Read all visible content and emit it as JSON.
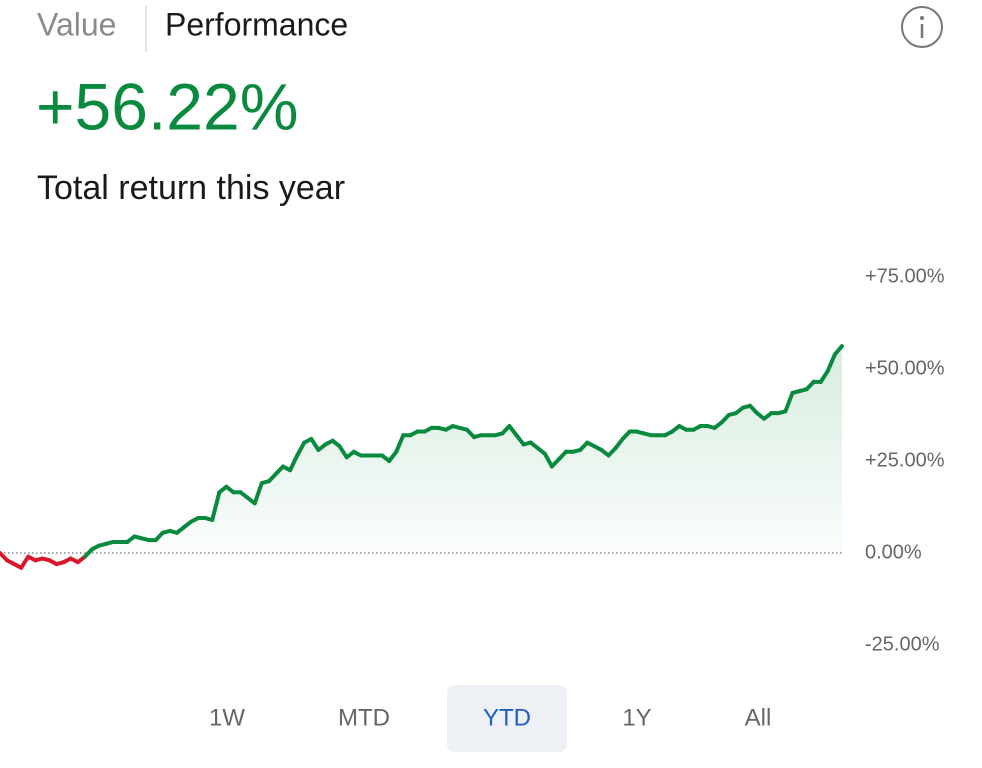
{
  "tabs": [
    "Value",
    "Performance"
  ],
  "active_tab": "Performance",
  "headline": "+56.22%",
  "subtitle": "Total return this year",
  "chart_data": {
    "type": "line",
    "values": [
      0,
      -2,
      -3,
      -4,
      -1,
      -2,
      -1.5,
      -2,
      -3,
      -2.5,
      -1.5,
      -2.5,
      -1,
      1,
      2,
      2.5,
      3,
      3,
      3,
      4.5,
      4,
      3.5,
      3.5,
      5.5,
      6,
      5.5,
      7,
      8.5,
      9.5,
      9.5,
      9,
      16.5,
      18,
      16.5,
      16.5,
      15,
      13.5,
      19,
      19.5,
      21.5,
      23.5,
      22.5,
      26.5,
      30,
      31,
      28,
      29.5,
      30.5,
      29,
      26,
      27.5,
      26.5,
      26.5,
      26.5,
      26.5,
      25,
      27.5,
      32,
      32,
      33,
      33,
      34,
      34,
      33.5,
      34.5,
      34,
      33.5,
      31.5,
      32,
      32,
      32,
      32.5,
      34.5,
      32,
      29.5,
      30,
      28.5,
      27,
      23.5,
      25.5,
      27.5,
      27.5,
      28,
      30,
      29,
      28,
      26.5,
      28.5,
      31,
      33,
      33,
      32.5,
      32,
      32,
      32,
      33,
      34.5,
      33.5,
      33.5,
      34.5,
      34.5,
      34,
      35.5,
      37.5,
      38,
      39.5,
      40,
      38,
      36.5,
      38,
      38,
      38.5,
      43.5,
      44,
      44.5,
      46.5,
      46.5,
      49.5,
      54,
      56.22
    ],
    "positive_color": "#0a8a3e",
    "negative_color": "#d7182a",
    "ylim": [
      -25,
      75
    ],
    "yticks": [
      {
        "value": -25,
        "label": "-25.00%"
      },
      {
        "value": 0,
        "label": "0.00%"
      },
      {
        "value": 25,
        "label": "+25.00%"
      },
      {
        "value": 50,
        "label": "+50.00%"
      },
      {
        "value": 75,
        "label": "+75.00%"
      }
    ],
    "zero_line": true
  },
  "ranges": [
    "1W",
    "MTD",
    "YTD",
    "1Y",
    "All"
  ],
  "selected_range": "YTD"
}
